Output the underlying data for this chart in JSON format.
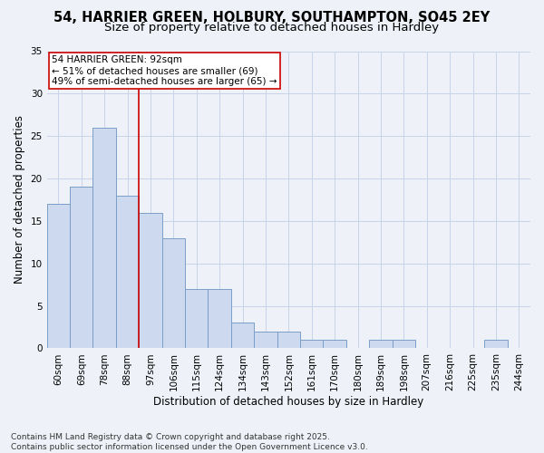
{
  "title1": "54, HARRIER GREEN, HOLBURY, SOUTHAMPTON, SO45 2EY",
  "title2": "Size of property relative to detached houses in Hardley",
  "xlabel": "Distribution of detached houses by size in Hardley",
  "ylabel": "Number of detached properties",
  "categories": [
    "60sqm",
    "69sqm",
    "78sqm",
    "88sqm",
    "97sqm",
    "106sqm",
    "115sqm",
    "124sqm",
    "134sqm",
    "143sqm",
    "152sqm",
    "161sqm",
    "170sqm",
    "180sqm",
    "189sqm",
    "198sqm",
    "207sqm",
    "216sqm",
    "225sqm",
    "235sqm",
    "244sqm"
  ],
  "values": [
    17,
    19,
    26,
    18,
    16,
    13,
    7,
    7,
    3,
    2,
    2,
    1,
    1,
    0,
    1,
    1,
    0,
    0,
    0,
    1,
    0
  ],
  "bar_color": "#ccd9ee",
  "bar_edge_color": "#7a9ec8",
  "grid_color": "#c8d4e8",
  "background_color": "#eef2f8",
  "vline_x": 3.5,
  "vline_color": "#cc0000",
  "annotation_line1": "54 HARRIER GREEN: 92sqm",
  "annotation_line2": "← 51% of detached houses are smaller (69)",
  "annotation_line3": "49% of semi-detached houses are larger (65) →",
  "annotation_box_color": "#ffffff",
  "annotation_box_edge_color": "#cc0000",
  "ylim": [
    0,
    35
  ],
  "yticks": [
    0,
    5,
    10,
    15,
    20,
    25,
    30,
    35
  ],
  "footer": "Contains HM Land Registry data © Crown copyright and database right 2025.\nContains public sector information licensed under the Open Government Licence v3.0.",
  "title_fontsize": 10.5,
  "subtitle_fontsize": 9.5,
  "label_fontsize": 8.5,
  "tick_fontsize": 7.5,
  "annotation_fontsize": 7.5,
  "footer_fontsize": 6.5
}
